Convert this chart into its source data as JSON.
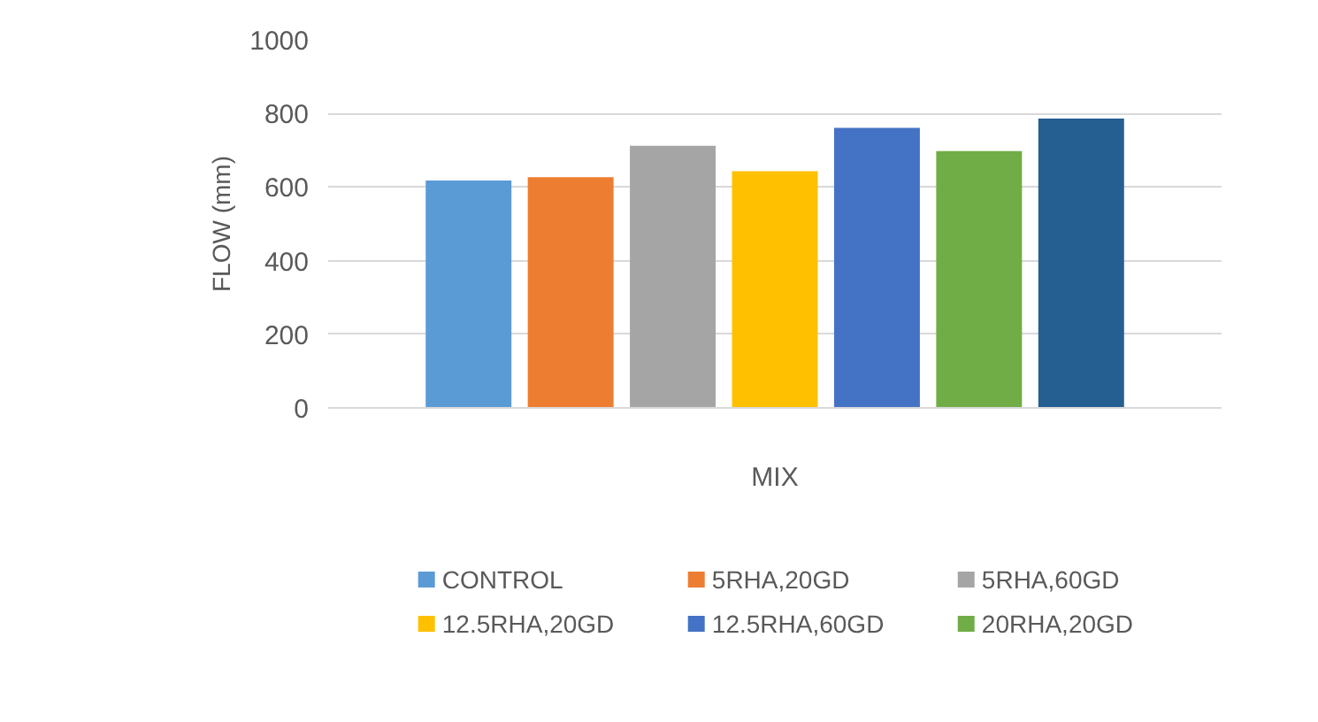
{
  "chart_data": {
    "type": "bar",
    "ylabel": "FLOW (mm)",
    "categories": [
      "MIX"
    ],
    "series": [
      {
        "name": "CONTROL",
        "color": "#5b9bd5",
        "values": [
          618
        ]
      },
      {
        "name": "5RHA,20GD",
        "color": "#ed7d31",
        "values": [
          627
        ]
      },
      {
        "name": "5RHA,60GD",
        "color": "#a5a5a5",
        "values": [
          712
        ]
      },
      {
        "name": "12.5RHA,20GD",
        "color": "#ffc000",
        "values": [
          643
        ]
      },
      {
        "name": "12.5RHA,60GD",
        "color": "#4472c4",
        "values": [
          761
        ]
      },
      {
        "name": "20RHA,20GD",
        "color": "#70ad47",
        "values": [
          698
        ]
      },
      {
        "color": "#255e91",
        "values": [
          786
        ]
      }
    ],
    "ylim": [
      0,
      1000
    ],
    "yticks": [
      0,
      200,
      400,
      600,
      800,
      1000
    ],
    "grid": "y",
    "legend": "bottom"
  }
}
